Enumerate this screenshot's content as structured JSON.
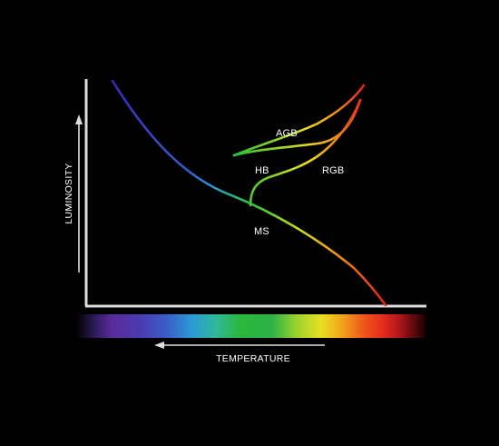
{
  "axes": {
    "y_label": "LUMINOSITY",
    "x_label": "TEMPERATURE"
  },
  "branches": {
    "ms": "MS",
    "rgb": "RGB",
    "hb": "HB",
    "agb": "AGB"
  },
  "colors": {
    "background": "#000000",
    "axis": "#dddddd",
    "violet": "#3b2bb0",
    "blue": "#2f86d6",
    "green": "#2bbf3a",
    "yellow": "#e8e020",
    "orange": "#f08a1a",
    "red": "#e0221c"
  }
}
